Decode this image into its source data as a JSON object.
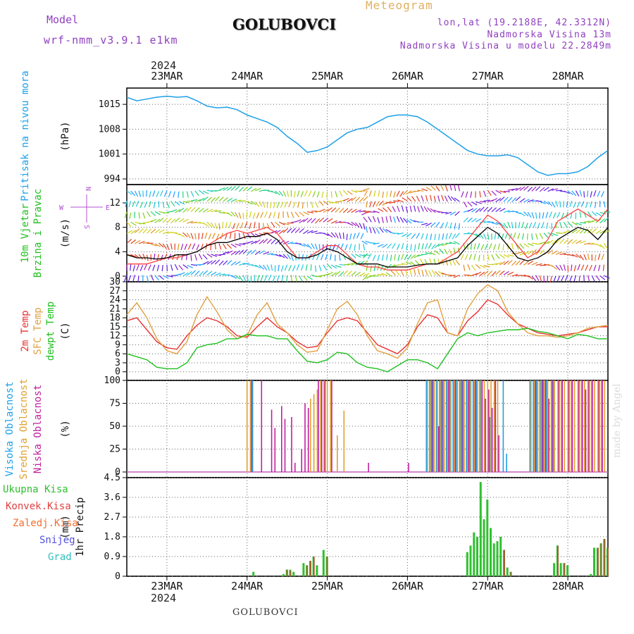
{
  "header": {
    "model_label": "Model",
    "model_name": "wrf-nmm_v3.9.1 e1km",
    "station": "GOLUBOVCI",
    "title": "Meteogram",
    "lonlat": "lon,lat (19.2188E, 42.3312N)",
    "elevation": "Nadmorska Visina 13m",
    "model_elevation": "Nadmorska Visina u modelu 22.2849m",
    "year_top": "2024",
    "year_bottom": "2024",
    "footer_station": "GOLUBOVCI",
    "watermark": "made by Angel"
  },
  "colors": {
    "pressure": "#1ea0e8",
    "wind_speed": "#000000",
    "wind_gust": "#ff4040",
    "temp2m": "#e83030",
    "sfctemp": "#e0a040",
    "dewpt": "#20c020",
    "cloud_high": "#20a0e8",
    "cloud_mid": "#e0a030",
    "cloud_low": "#c020a0",
    "precip_total": "#30c030",
    "precip_conv": "#e04040",
    "precip_frz": "#f07030",
    "snow": "#5050e0",
    "hail": "#30c0c0"
  },
  "chart_data": [
    {
      "type": "line",
      "panel": "pressure",
      "ylabel": "Pritisak na nivou mora",
      "unit": "(hPa)",
      "ylim": [
        994,
        1018
      ],
      "yticks": [
        994,
        1001,
        1008,
        1015
      ],
      "grid": true,
      "x_hours": [
        0,
        3,
        6,
        9,
        12,
        15,
        18,
        21,
        24,
        27,
        30,
        33,
        36,
        39,
        42,
        45,
        48,
        51,
        54,
        57,
        60,
        63,
        66,
        69,
        72,
        75,
        78,
        81,
        84,
        87,
        90,
        93,
        96,
        99,
        102,
        105,
        108,
        111,
        114,
        117,
        120,
        123,
        126,
        129,
        132,
        135,
        138,
        141,
        144
      ],
      "values": [
        1017,
        1016,
        1016.5,
        1017,
        1017.3,
        1017,
        1017.2,
        1016,
        1014.5,
        1014,
        1014.2,
        1013.5,
        1012,
        1011,
        1010,
        1008.5,
        1006,
        1004,
        1001.5,
        1002,
        1003,
        1005,
        1007,
        1008,
        1008.5,
        1010,
        1011.5,
        1012,
        1012,
        1011.5,
        1010,
        1008,
        1006,
        1004,
        1002,
        1001,
        1000.5,
        1000.5,
        1000.8,
        1000,
        998,
        996,
        995,
        995.5,
        995.5,
        996,
        997.5,
        1000,
        1002
      ]
    },
    {
      "type": "line",
      "panel": "wind",
      "ylabel": "10m Vjetar",
      "ylabel2": "Brzina i Pravac",
      "unit": "(m/s)",
      "ylim": [
        0,
        15
      ],
      "yticks": [
        0,
        4,
        8,
        12
      ],
      "grid": true,
      "compass": {
        "n": "N",
        "s": "S",
        "e": "E",
        "w": "W"
      },
      "x_hours": [
        0,
        3,
        6,
        9,
        12,
        15,
        18,
        21,
        24,
        27,
        30,
        33,
        36,
        39,
        42,
        45,
        48,
        51,
        54,
        57,
        60,
        63,
        66,
        69,
        72,
        75,
        78,
        81,
        84,
        87,
        90,
        93,
        96,
        99,
        102,
        105,
        108,
        111,
        114,
        117,
        120,
        123,
        126,
        129,
        132,
        135,
        138,
        141,
        144
      ],
      "series": [
        {
          "name": "speed",
          "values": [
            3.5,
            3,
            3,
            2.8,
            3,
            3.5,
            3.5,
            4,
            5,
            5.5,
            5.5,
            6,
            6.5,
            6.5,
            7,
            6,
            4,
            3,
            3,
            3.5,
            4.5,
            4,
            3,
            2,
            2,
            2,
            1.5,
            1.5,
            1.5,
            1.8,
            2,
            2,
            2.5,
            3,
            5,
            6.5,
            8,
            7,
            5,
            3,
            2.5,
            3,
            4,
            6,
            7,
            8,
            7.5,
            6,
            8
          ]
        },
        {
          "name": "gust",
          "values": [
            2,
            2,
            2,
            2.5,
            3,
            3,
            3.5,
            4,
            5,
            6,
            7,
            7.5,
            7,
            7.5,
            8,
            7,
            5,
            3,
            3,
            4,
            5,
            5,
            3.5,
            2,
            1.5,
            1.5,
            1,
            1,
            1,
            1.5,
            2,
            2,
            3,
            4,
            6,
            8,
            10,
            9,
            7,
            5,
            3,
            4,
            6,
            9,
            10,
            11,
            10,
            9,
            11
          ]
        }
      ]
    },
    {
      "type": "line",
      "panel": "temperature",
      "ylabel": "2m Temp",
      "ylabel2": "SFC Temp",
      "ylabel3": "dewpt Temp",
      "unit": "(C)",
      "ylim": [
        -1,
        30
      ],
      "yticks": [
        0,
        3,
        6,
        9,
        12,
        15,
        18,
        21,
        24,
        27,
        30
      ],
      "grid": true,
      "x_hours": [
        0,
        3,
        6,
        9,
        12,
        15,
        18,
        21,
        24,
        27,
        30,
        33,
        36,
        39,
        42,
        45,
        48,
        51,
        54,
        57,
        60,
        63,
        66,
        69,
        72,
        75,
        78,
        81,
        84,
        87,
        90,
        93,
        96,
        99,
        102,
        105,
        108,
        111,
        114,
        117,
        120,
        123,
        126,
        129,
        132,
        135,
        138,
        141,
        144
      ],
      "series": [
        {
          "name": "2m",
          "values": [
            17,
            18,
            14,
            10,
            8,
            7.5,
            12,
            15.5,
            18,
            17,
            15,
            12,
            11.5,
            15,
            18,
            15,
            13,
            10,
            8,
            8.5,
            13,
            17,
            18,
            17,
            13,
            9,
            7.5,
            6,
            9,
            15,
            19,
            18,
            13,
            12,
            17,
            20,
            24,
            22.5,
            19,
            16,
            14.5,
            13,
            12.5,
            12,
            12.5,
            13,
            14,
            15,
            15
          ]
        },
        {
          "name": "sfc",
          "values": [
            19,
            23,
            18,
            11,
            7,
            6,
            10,
            19,
            25,
            20,
            14,
            11,
            12,
            19,
            23,
            16,
            13,
            9,
            6.5,
            7,
            14,
            21,
            23.5,
            19,
            12,
            7,
            6,
            4.5,
            8,
            16,
            23,
            24,
            13,
            12,
            21,
            26,
            29,
            27,
            20,
            16,
            13,
            12,
            12,
            11.5,
            12,
            13,
            14.5,
            15,
            15.5
          ]
        },
        {
          "name": "dewpt",
          "values": [
            6,
            5,
            4,
            1.5,
            1,
            1,
            3,
            8,
            9,
            9.5,
            11,
            11,
            12.5,
            12,
            12,
            11,
            11,
            7,
            3.5,
            3,
            4,
            6.5,
            6,
            3,
            1.5,
            1,
            0,
            2,
            4,
            4,
            3,
            1,
            6,
            11,
            13,
            12,
            13,
            13.5,
            14,
            14,
            14.5,
            13.5,
            13,
            12,
            11,
            12.5,
            12,
            11,
            11
          ]
        }
      ]
    },
    {
      "type": "bar",
      "panel": "clouds",
      "ylabel": "Visoka Oblacnost",
      "ylabel2": "Srednja Oblacnost",
      "ylabel3": "Niska Oblacnost",
      "unit": "(%)",
      "ylim": [
        0,
        100
      ],
      "yticks": [
        0,
        25,
        50,
        75,
        100
      ],
      "grid": true,
      "bars": [
        [
          36,
          0,
          100,
          0
        ],
        [
          37,
          0,
          100,
          100
        ],
        [
          38,
          100,
          0,
          0
        ],
        [
          40,
          0,
          0,
          100
        ],
        [
          43,
          0,
          0,
          68
        ],
        [
          44,
          0,
          0,
          48
        ],
        [
          46,
          0,
          0,
          72
        ],
        [
          47,
          0,
          0,
          58
        ],
        [
          49,
          0,
          0,
          60
        ],
        [
          50,
          0,
          0,
          10
        ],
        [
          52,
          0,
          0,
          25
        ],
        [
          53,
          0,
          0,
          75
        ],
        [
          54,
          0,
          0,
          70
        ],
        [
          55,
          0,
          80,
          0
        ],
        [
          56,
          0,
          85,
          0
        ],
        [
          57,
          0,
          90,
          100
        ],
        [
          58,
          0,
          100,
          100
        ],
        [
          59,
          0,
          100,
          100
        ],
        [
          60,
          0,
          100,
          0
        ],
        [
          61,
          0,
          100,
          100
        ],
        [
          63,
          0,
          40,
          0
        ],
        [
          65,
          0,
          67,
          0
        ],
        [
          72,
          0,
          0,
          10
        ],
        [
          84,
          0,
          0,
          10
        ],
        [
          90,
          100,
          100,
          0
        ],
        [
          91,
          100,
          100,
          100
        ],
        [
          92,
          100,
          100,
          0
        ],
        [
          93,
          100,
          100,
          50
        ],
        [
          94,
          100,
          100,
          100
        ],
        [
          95,
          100,
          100,
          0
        ],
        [
          96,
          100,
          100,
          100
        ],
        [
          97,
          100,
          100,
          0
        ],
        [
          98,
          100,
          100,
          100
        ],
        [
          99,
          100,
          100,
          0
        ],
        [
          100,
          100,
          100,
          100
        ],
        [
          101,
          100,
          100,
          0
        ],
        [
          102,
          100,
          100,
          100
        ],
        [
          103,
          100,
          100,
          0
        ],
        [
          104,
          100,
          100,
          100
        ],
        [
          105,
          100,
          100,
          0
        ],
        [
          106,
          100,
          100,
          100
        ],
        [
          107,
          0,
          100,
          80
        ],
        [
          108,
          0,
          100,
          90
        ],
        [
          109,
          60,
          100,
          70
        ],
        [
          110,
          0,
          100,
          100
        ],
        [
          111,
          0,
          100,
          40
        ],
        [
          113,
          100,
          0,
          0
        ],
        [
          114,
          20,
          0,
          0
        ],
        [
          121,
          100,
          100,
          0
        ],
        [
          122,
          100,
          100,
          100
        ],
        [
          123,
          100,
          100,
          0
        ],
        [
          124,
          100,
          100,
          100
        ],
        [
          125,
          100,
          100,
          100
        ],
        [
          126,
          100,
          100,
          80
        ],
        [
          127,
          0,
          100,
          100
        ],
        [
          128,
          100,
          100,
          0
        ],
        [
          129,
          0,
          100,
          100
        ],
        [
          130,
          0,
          100,
          100
        ],
        [
          131,
          0,
          100,
          0
        ],
        [
          132,
          0,
          100,
          100
        ],
        [
          133,
          0,
          100,
          100
        ],
        [
          134,
          0,
          100,
          0
        ],
        [
          135,
          0,
          100,
          100
        ],
        [
          136,
          0,
          100,
          100
        ],
        [
          137,
          0,
          100,
          90
        ],
        [
          138,
          0,
          100,
          100
        ],
        [
          139,
          0,
          100,
          100
        ],
        [
          140,
          0,
          100,
          0
        ],
        [
          141,
          0,
          100,
          100
        ],
        [
          142,
          0,
          100,
          100
        ],
        [
          143,
          0,
          100,
          0
        ]
      ]
    },
    {
      "type": "bar",
      "panel": "precip",
      "ylabel": "1hr Precip",
      "unit": "(mm)",
      "legend": [
        "Ukupna Kisa",
        "Konvek.Kisa",
        "Zaledj.Kisa",
        "Snijeg",
        "Grad"
      ],
      "ylim": [
        0,
        4.5
      ],
      "yticks": [
        0,
        0.9,
        1.8,
        2.7,
        3.6,
        4.5
      ],
      "grid": true,
      "bars": [
        [
          38,
          0.2,
          0
        ],
        [
          47,
          0.1,
          0
        ],
        [
          48,
          0.3,
          0.3
        ],
        [
          49,
          0.3,
          0.25
        ],
        [
          50,
          0.2,
          0
        ],
        [
          53,
          0.6,
          0
        ],
        [
          54,
          0.5,
          0.5
        ],
        [
          55,
          0.7,
          0.7
        ],
        [
          56,
          0.9,
          0.9
        ],
        [
          57,
          0.5,
          0
        ],
        [
          59,
          1.2,
          0
        ],
        [
          60,
          0.9,
          0.9
        ],
        [
          102,
          1.1,
          0
        ],
        [
          103,
          1.4,
          0
        ],
        [
          104,
          2,
          0
        ],
        [
          105,
          1.8,
          0
        ],
        [
          106,
          4.3,
          0
        ],
        [
          107,
          2.6,
          0
        ],
        [
          108,
          3.5,
          0
        ],
        [
          109,
          2.2,
          0
        ],
        [
          110,
          1.5,
          0
        ],
        [
          111,
          1.6,
          0
        ],
        [
          112,
          1.8,
          0
        ],
        [
          113,
          1.2,
          1.2
        ],
        [
          114,
          0.4,
          0
        ],
        [
          115,
          0.2,
          0.2
        ],
        [
          128,
          0.6,
          0
        ],
        [
          129,
          1.4,
          1.4
        ],
        [
          130,
          0.6,
          0
        ],
        [
          131,
          0.6,
          0.6
        ],
        [
          132,
          0.5,
          0
        ],
        [
          139,
          0.1,
          0
        ],
        [
          140,
          1.3,
          0
        ],
        [
          141,
          1.3,
          1.3
        ],
        [
          142,
          1.5,
          1.5
        ],
        [
          143,
          1.7,
          1.7
        ],
        [
          144,
          1.3,
          1.3
        ]
      ]
    }
  ],
  "xaxis": {
    "dates": [
      "23MAR",
      "24MAR",
      "25MAR",
      "26MAR",
      "27MAR",
      "28MAR"
    ],
    "date_hours": [
      12,
      36,
      60,
      84,
      108,
      132
    ],
    "range_hours": [
      0,
      144
    ]
  }
}
